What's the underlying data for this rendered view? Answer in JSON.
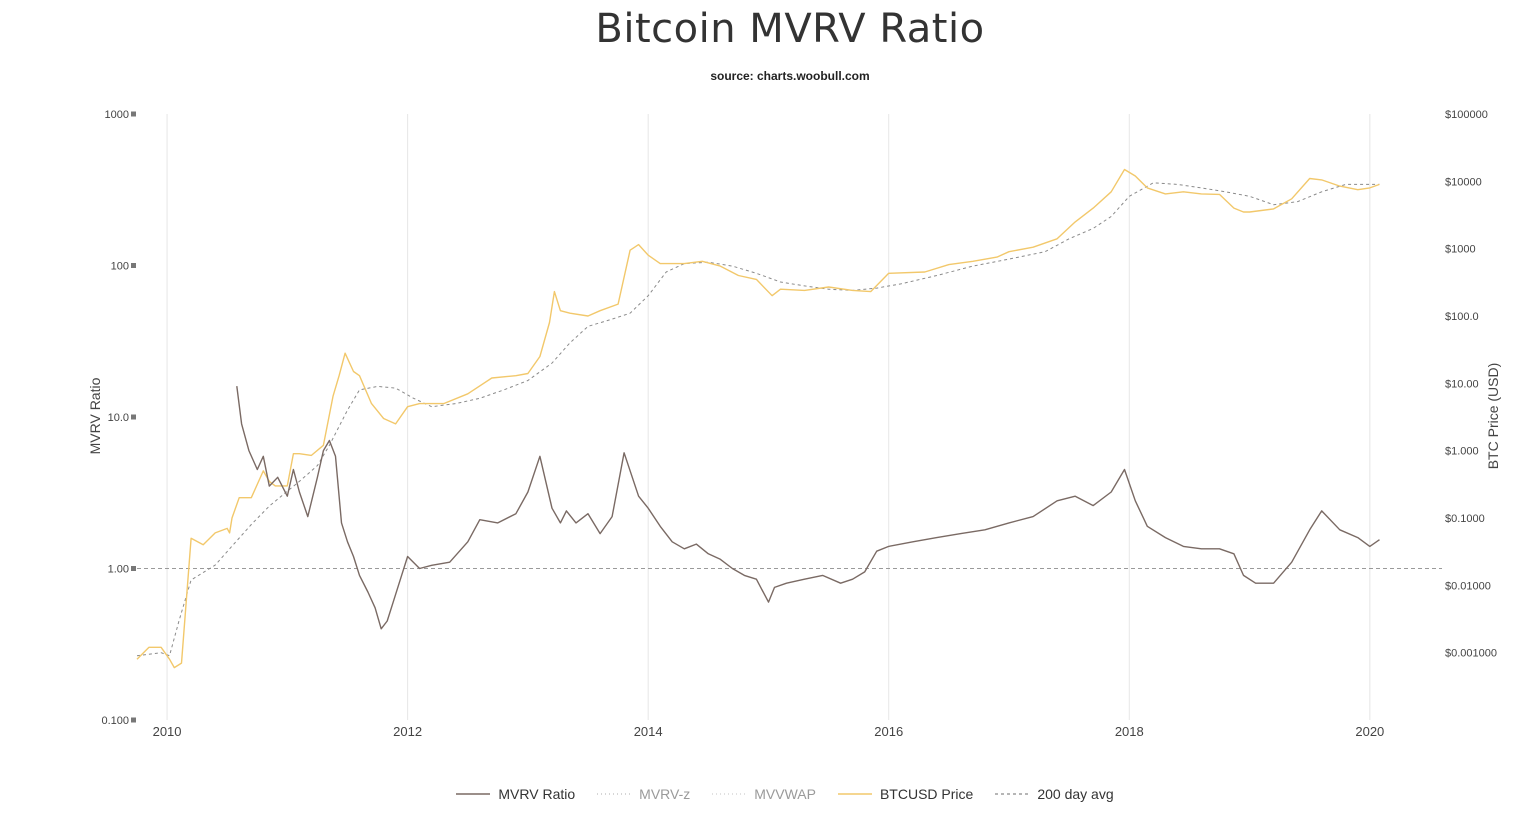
{
  "header": {
    "title": "Bitcoin MVRV Ratio",
    "subtitle": "source: charts.woobull.com"
  },
  "chart_data": {
    "type": "line",
    "xlabel": "",
    "ylabel": "MVRV Ratio",
    "ylabel_right": "BTC Price (USD)",
    "x_ticks": [
      "2010",
      "2012",
      "2014",
      "2016",
      "2018",
      "2020"
    ],
    "y_ticks_left": [
      "1000",
      "100",
      "10.0",
      "1.00",
      "0.100"
    ],
    "y_ticks_right": [
      "$100000",
      "$10000",
      "$1000",
      "$100.0",
      "$10.00",
      "$1.000",
      "$0.1000",
      "$0.01000",
      "$0.001000"
    ],
    "ylim_left": [
      0.1,
      1000
    ],
    "ylim_right": [
      0.0004,
      100000
    ],
    "xlim": [
      2009.75,
      2020.6
    ],
    "scale": "log",
    "grid": "vertical",
    "reference_line": 1.0,
    "legend_position": "bottom",
    "series": [
      {
        "name": "MVRV Ratio",
        "color": "#7a6a64",
        "style": "solid",
        "axis": "left",
        "x": [
          2010.58,
          2010.62,
          2010.68,
          2010.75,
          2010.8,
          2010.85,
          2010.92,
          2011.0,
          2011.05,
          2011.1,
          2011.17,
          2011.25,
          2011.3,
          2011.35,
          2011.4,
          2011.45,
          2011.5,
          2011.55,
          2011.6,
          2011.67,
          2011.73,
          2011.78,
          2011.83,
          2011.88,
          2011.95,
          2012.0,
          2012.1,
          2012.2,
          2012.35,
          2012.5,
          2012.6,
          2012.75,
          2012.9,
          2013.0,
          2013.1,
          2013.2,
          2013.27,
          2013.32,
          2013.4,
          2013.5,
          2013.6,
          2013.7,
          2013.8,
          2013.92,
          2014.0,
          2014.1,
          2014.2,
          2014.3,
          2014.4,
          2014.5,
          2014.6,
          2014.7,
          2014.8,
          2014.9,
          2015.0,
          2015.05,
          2015.15,
          2015.3,
          2015.45,
          2015.6,
          2015.7,
          2015.8,
          2015.9,
          2016.0,
          2016.2,
          2016.4,
          2016.6,
          2016.8,
          2017.0,
          2017.2,
          2017.4,
          2017.55,
          2017.7,
          2017.85,
          2017.96,
          2018.05,
          2018.15,
          2018.3,
          2018.45,
          2018.6,
          2018.75,
          2018.87,
          2018.95,
          2019.05,
          2019.2,
          2019.35,
          2019.5,
          2019.6,
          2019.75,
          2019.9,
          2020.0,
          2020.08
        ],
        "values": [
          16,
          9,
          6,
          4.5,
          5.5,
          3.5,
          4,
          3,
          4.5,
          3.2,
          2.2,
          4,
          6,
          7,
          5.5,
          2,
          1.5,
          1.2,
          0.9,
          0.7,
          0.55,
          0.4,
          0.45,
          0.6,
          0.9,
          1.2,
          1.0,
          1.05,
          1.1,
          1.5,
          2.1,
          2.0,
          2.3,
          3.2,
          5.5,
          2.5,
          2.0,
          2.4,
          2.0,
          2.3,
          1.7,
          2.2,
          5.8,
          3.0,
          2.5,
          1.9,
          1.5,
          1.35,
          1.45,
          1.25,
          1.15,
          1.0,
          0.9,
          0.85,
          0.6,
          0.75,
          0.8,
          0.85,
          0.9,
          0.8,
          0.85,
          0.95,
          1.3,
          1.4,
          1.5,
          1.6,
          1.7,
          1.8,
          2.0,
          2.2,
          2.8,
          3.0,
          2.6,
          3.2,
          4.5,
          2.8,
          1.9,
          1.6,
          1.4,
          1.35,
          1.35,
          1.25,
          0.9,
          0.8,
          0.8,
          1.1,
          1.8,
          2.4,
          1.8,
          1.6,
          1.4,
          1.55
        ]
      },
      {
        "name": "MVRV-z",
        "color": "#bdbdbd",
        "style": "dotted",
        "axis": "left",
        "x": [],
        "values": []
      },
      {
        "name": "MVVWAP",
        "color": "#cfcfcf",
        "style": "dotted",
        "axis": "left",
        "x": [],
        "values": []
      },
      {
        "name": "BTCUSD Price",
        "color": "#f2c86b",
        "style": "solid",
        "axis": "right",
        "x": [
          2009.75,
          2009.85,
          2009.95,
          2010.02,
          2010.06,
          2010.12,
          2010.2,
          2010.3,
          2010.4,
          2010.5,
          2010.52,
          2010.54,
          2010.6,
          2010.7,
          2010.8,
          2010.85,
          2010.9,
          2011.0,
          2011.05,
          2011.1,
          2011.2,
          2011.3,
          2011.38,
          2011.43,
          2011.48,
          2011.55,
          2011.6,
          2011.7,
          2011.8,
          2011.9,
          2012.0,
          2012.1,
          2012.3,
          2012.5,
          2012.7,
          2012.9,
          2013.0,
          2013.1,
          2013.18,
          2013.22,
          2013.27,
          2013.35,
          2013.5,
          2013.6,
          2013.75,
          2013.85,
          2013.92,
          2014.0,
          2014.1,
          2014.3,
          2014.45,
          2014.6,
          2014.75,
          2014.9,
          2015.03,
          2015.1,
          2015.3,
          2015.5,
          2015.7,
          2015.85,
          2016.0,
          2016.3,
          2016.5,
          2016.7,
          2016.9,
          2017.0,
          2017.2,
          2017.4,
          2017.55,
          2017.7,
          2017.85,
          2017.96,
          2018.05,
          2018.15,
          2018.3,
          2018.45,
          2018.6,
          2018.75,
          2018.87,
          2018.95,
          2019.0,
          2019.2,
          2019.35,
          2019.5,
          2019.6,
          2019.75,
          2019.9,
          2020.0,
          2020.08
        ],
        "values": [
          0.0008,
          0.0012,
          0.0012,
          0.0008,
          0.0006,
          0.0007,
          0.05,
          0.04,
          0.06,
          0.07,
          0.06,
          0.1,
          0.2,
          0.2,
          0.5,
          0.35,
          0.3,
          0.3,
          0.9,
          0.9,
          0.85,
          1.2,
          6.5,
          13,
          28,
          15,
          13,
          5,
          3,
          2.5,
          4.5,
          5,
          5,
          7,
          12,
          13,
          14,
          25,
          80,
          230,
          120,
          110,
          100,
          120,
          150,
          950,
          1150,
          800,
          600,
          600,
          650,
          550,
          400,
          350,
          200,
          250,
          240,
          270,
          240,
          230,
          430,
          450,
          580,
          650,
          750,
          900,
          1050,
          1400,
          2500,
          4000,
          7000,
          15000,
          12000,
          8000,
          6500,
          7000,
          6500,
          6400,
          4000,
          3500,
          3500,
          3900,
          5500,
          11000,
          10500,
          8500,
          7500,
          8000,
          9000
        ]
      },
      {
        "name": "200 day avg",
        "color": "#8a8a8a",
        "style": "dashed",
        "axis": "right",
        "x": [
          2009.75,
          2009.95,
          2010.02,
          2010.1,
          2010.2,
          2010.4,
          2010.55,
          2010.7,
          2010.85,
          2011.0,
          2011.1,
          2011.25,
          2011.35,
          2011.5,
          2011.6,
          2011.75,
          2011.9,
          2012.05,
          2012.2,
          2012.4,
          2012.6,
          2012.8,
          2013.0,
          2013.2,
          2013.35,
          2013.5,
          2013.7,
          2013.85,
          2014.0,
          2014.15,
          2014.3,
          2014.5,
          2014.7,
          2014.9,
          2015.1,
          2015.3,
          2015.5,
          2015.7,
          2015.9,
          2016.1,
          2016.4,
          2016.7,
          2017.0,
          2017.3,
          2017.5,
          2017.7,
          2017.85,
          2018.0,
          2018.2,
          2018.4,
          2018.6,
          2018.8,
          2019.0,
          2019.2,
          2019.4,
          2019.6,
          2019.8,
          2020.0,
          2020.08
        ],
        "values": [
          0.0009,
          0.001,
          0.0009,
          0.003,
          0.012,
          0.02,
          0.04,
          0.08,
          0.15,
          0.25,
          0.35,
          0.6,
          1.2,
          4,
          8,
          9,
          8.5,
          6,
          4.5,
          5,
          6,
          8,
          11,
          20,
          40,
          70,
          90,
          110,
          200,
          450,
          600,
          630,
          550,
          430,
          320,
          280,
          250,
          240,
          260,
          300,
          400,
          550,
          700,
          900,
          1400,
          2000,
          3000,
          6000,
          9500,
          9000,
          8000,
          7000,
          6000,
          4500,
          5000,
          7000,
          9000,
          9000,
          9000
        ]
      }
    ]
  }
}
